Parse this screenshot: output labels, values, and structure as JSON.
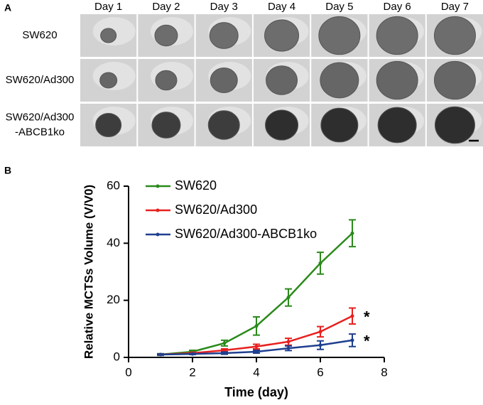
{
  "panel_a": {
    "label": "A",
    "columns": [
      "Day 1",
      "Day 2",
      "Day 3",
      "Day 4",
      "Day 5",
      "Day 6",
      "Day 7"
    ],
    "rows": [
      [
        "SW620"
      ],
      [
        "SW620/Ad300"
      ],
      [
        "SW620/Ad300",
        "-ABCB1ko"
      ]
    ]
  },
  "chart_data": {
    "type": "line",
    "panel_label": "B",
    "x_label": "Time (day)",
    "y_label": "Relative MCTSs Volume (V/V0)",
    "x": [
      1,
      2,
      3,
      4,
      5,
      6,
      7
    ],
    "series": [
      {
        "name": "SW620",
        "color": "#2a8a1a",
        "values": [
          1,
          2,
          5,
          11,
          21,
          33,
          43.5
        ],
        "errors": [
          0.3,
          0.5,
          1,
          3.2,
          3,
          3.8,
          4.7
        ]
      },
      {
        "name": "SW620/Ad300",
        "color": "#e8201e",
        "values": [
          1,
          1.5,
          2.5,
          3.8,
          5.5,
          9,
          14.5
        ],
        "errors": [
          0.2,
          0.3,
          0.5,
          0.8,
          1.2,
          1.8,
          2.8
        ],
        "annotation": "*"
      },
      {
        "name": "SW620/Ad300-ABCB1ko",
        "color": "#1f3f8f",
        "values": [
          1,
          1.2,
          1.5,
          2,
          3.2,
          4.3,
          6
        ],
        "errors": [
          0.2,
          0.2,
          0.4,
          0.5,
          0.8,
          1.5,
          2.2
        ],
        "annotation": "*"
      }
    ],
    "xlim": [
      0,
      8
    ],
    "xticks": [
      0,
      2,
      4,
      6,
      8
    ],
    "ylim": [
      0,
      60
    ],
    "yticks": [
      0,
      20,
      40,
      60
    ],
    "legend": "upper-left"
  }
}
